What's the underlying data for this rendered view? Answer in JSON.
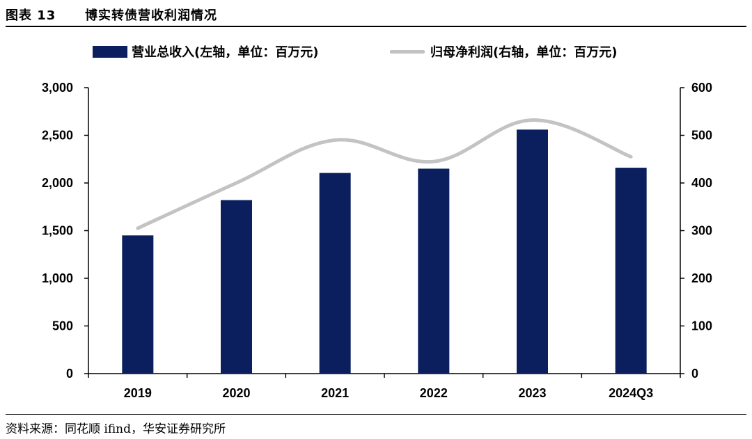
{
  "header": {
    "figure_label": "图表 13",
    "title": "博实转债营收利润情况"
  },
  "legend": {
    "bar_label": "营业总收入(左轴，单位：百万元)",
    "line_label": "归母净利润(右轴，单位：百万元)"
  },
  "source": "资料来源：同花顺 ifind，华安证券研究所",
  "colors": {
    "bar": "#0b1f5e",
    "line": "#c3c3c3"
  },
  "chart_data": {
    "type": "bar",
    "categories": [
      "2019",
      "2020",
      "2021",
      "2022",
      "2023",
      "2024Q3"
    ],
    "series": [
      {
        "name": "营业总收入(左轴，单位：百万元)",
        "type": "bar",
        "axis": "left",
        "values": [
          1450,
          1820,
          2105,
          2150,
          2560,
          2160
        ]
      },
      {
        "name": "归母净利润(右轴，单位：百万元)",
        "type": "line",
        "axis": "right",
        "smooth": true,
        "values": [
          305,
          400,
          490,
          445,
          532,
          455
        ]
      }
    ],
    "y_left": {
      "min": 0,
      "max": 3000,
      "ticks": [
        0,
        500,
        1000,
        1500,
        2000,
        2500,
        3000
      ],
      "tick_labels": [
        "0",
        "500",
        "1,000",
        "1,500",
        "2,000",
        "2,500",
        "3,000"
      ]
    },
    "y_right": {
      "min": 0,
      "max": 600,
      "ticks": [
        0,
        100,
        200,
        300,
        400,
        500,
        600
      ],
      "tick_labels": [
        "0",
        "100",
        "200",
        "300",
        "400",
        "500",
        "600"
      ]
    },
    "grid": false,
    "legend_position": "top"
  }
}
